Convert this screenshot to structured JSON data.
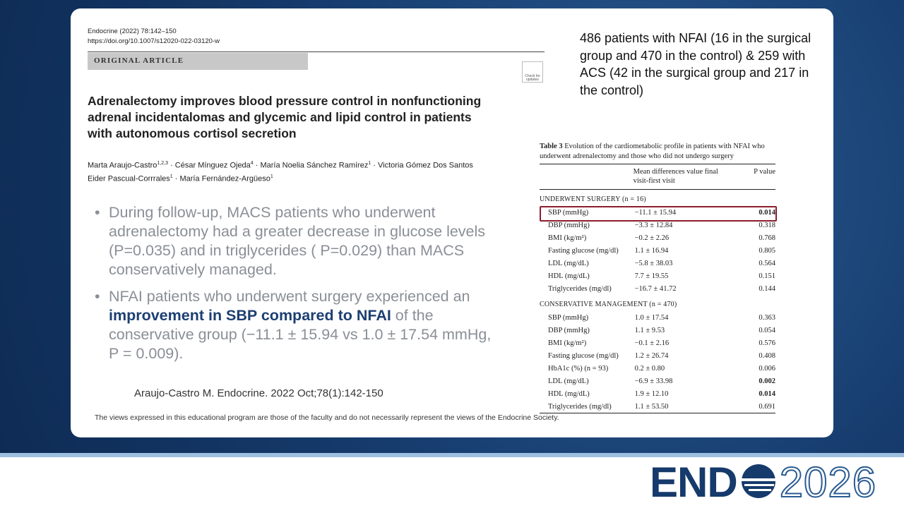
{
  "article": {
    "journal": "Endocrine (2022) 78:142–150",
    "doi": "https://doi.org/10.1007/s12020-022-03120-w",
    "section": "ORIGINAL ARTICLE",
    "badge": [
      "Check for",
      "updates"
    ],
    "title": [
      "Adrenalectomy improves blood pressure control in nonfunctioning",
      "adrenal incidentalomas and glycemic and lipid control in patients",
      "with autonomous cortisol secretion"
    ],
    "authors": [
      [
        {
          "name": "Marta Araujo-Castro",
          "sup": "1,2,3"
        },
        {
          "name": "César Mínguez Ojeda",
          "sup": "4"
        },
        {
          "name": "María Noelia Sánchez Ramírez",
          "sup": "1"
        },
        {
          "name": "Victoria Gómez Dos Santos",
          "sup": ""
        }
      ],
      [
        {
          "name": "Eider Pascual-Corrrales",
          "sup": "1"
        },
        {
          "name": "María Fernández-Argüeso",
          "sup": "1"
        }
      ]
    ]
  },
  "bullets": [
    [
      {
        "text": "During follow-up, MACS patients who underwent adrenalectomy had a greater decrease in glucose levels (P=0.035) and in triglycerides ( P=0.029) than MACS conservatively managed.",
        "bold": false
      }
    ],
    [
      {
        "text": "NFAI patients who underwent surgery experienced an ",
        "bold": false
      },
      {
        "text": "improvement in SBP compared to NFAI",
        "bold": true
      },
      {
        "text": " of the conservative group (−11.1 ± 15.94 vs 1.0 ± 17.54 mmHg, P = 0.009).",
        "bold": false
      }
    ]
  ],
  "citation": "Araujo-Castro M. Endocrine. 2022 Oct;78(1):142-150",
  "disclaimer": "The views expressed in this educational program are those of the faculty and do not necessarily represent the views of the Endocrine Society.",
  "summary": "486 patients with NFAI (16 in the surgical group and 470 in the control) & 259 with ACS (42 in the surgical group and 217 in the control)",
  "table": {
    "label": "Table 3",
    "caption": "Evolution of the cardiometabolic profile in patients with NFAI who underwent adrenalectomy and those who did not undergo surgery",
    "header": [
      "Mean differences value final visit-first visit",
      "P value"
    ],
    "sections": [
      {
        "title": "UNDERWENT SURGERY (n = 16)",
        "rows": [
          {
            "cells": [
              "SBP (mmHg)",
              "−11.1 ± 15.94",
              "0.014"
            ],
            "bold_p": true,
            "highlight": true
          },
          {
            "cells": [
              "DBP (mmHg)",
              "−3.3 ± 12.84",
              "0.318"
            ],
            "bold_p": false,
            "highlight": false
          },
          {
            "cells": [
              "BMI (kg/m²)",
              "−0.2 ± 2.26",
              "0.768"
            ],
            "bold_p": false,
            "highlight": false
          },
          {
            "cells": [
              "Fasting glucose (mg/dl)",
              "1.1 ± 16.94",
              "0.805"
            ],
            "bold_p": false,
            "highlight": false
          },
          {
            "cells": [
              "LDL (mg/dL)",
              "−5.8 ± 38.03",
              "0.564"
            ],
            "bold_p": false,
            "highlight": false
          },
          {
            "cells": [
              "HDL (mg/dL)",
              "7.7 ± 19.55",
              "0.151"
            ],
            "bold_p": false,
            "highlight": false
          },
          {
            "cells": [
              "Triglycerides (mg/dl)",
              "−16.7 ± 41.72",
              "0.144"
            ],
            "bold_p": false,
            "highlight": false
          }
        ]
      },
      {
        "title": "CONSERVATIVE MANAGEMENT (n = 470)",
        "rows": [
          {
            "cells": [
              "SBP (mmHg)",
              "1.0 ± 17.54",
              "0.363"
            ],
            "bold_p": false,
            "highlight": false
          },
          {
            "cells": [
              "DBP (mmHg)",
              "1.1 ± 9.53",
              "0.054"
            ],
            "bold_p": false,
            "highlight": false
          },
          {
            "cells": [
              "BMI (kg/m²)",
              "−0.1 ± 2.16",
              "0.576"
            ],
            "bold_p": false,
            "highlight": false
          },
          {
            "cells": [
              "Fasting glucose (mg/dl)",
              "1.2 ± 26.74",
              "0.408"
            ],
            "bold_p": false,
            "highlight": false
          },
          {
            "cells": [
              "HbA1c (%) (n = 93)",
              "0.2 ± 0.80",
              "0.006"
            ],
            "bold_p": false,
            "highlight": false
          },
          {
            "cells": [
              "LDL (mg/dL)",
              "−6.9 ± 33.98",
              "0.002"
            ],
            "bold_p": true,
            "highlight": false
          },
          {
            "cells": [
              "HDL (mg/dL)",
              "1.9 ± 12.10",
              "0.014"
            ],
            "bold_p": true,
            "highlight": false
          },
          {
            "cells": [
              "Triglycerides (mg/dl)",
              "1.1 ± 53.50",
              "0.691"
            ],
            "bold_p": false,
            "highlight": false
          }
        ]
      }
    ]
  },
  "logo": {
    "brand": "END",
    "year": "2026"
  }
}
